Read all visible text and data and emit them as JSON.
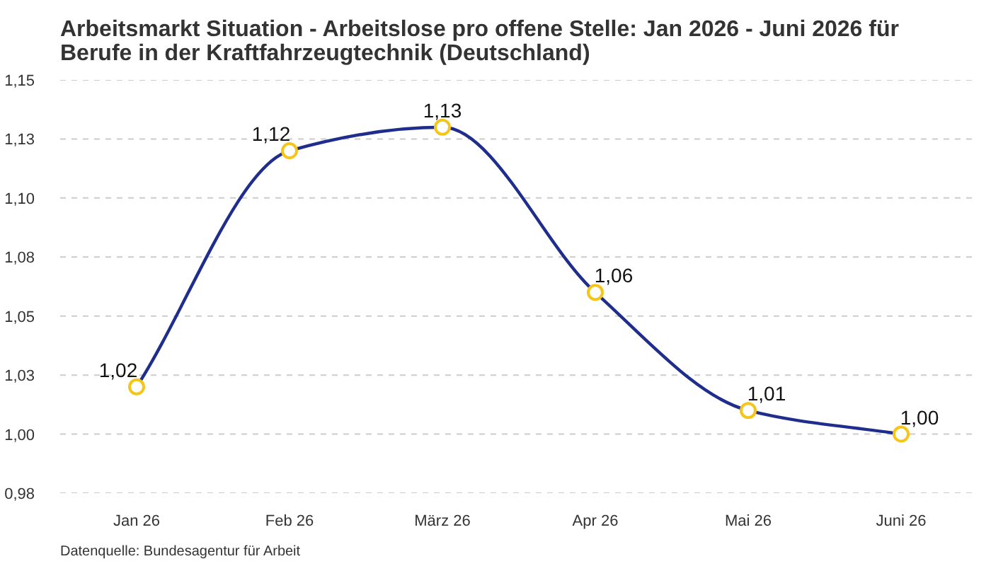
{
  "chart_data": {
    "type": "line",
    "title": "Arbeitsmarkt Situation - Arbeitslose pro offene Stelle: Jan 2026 - Juni 2026 für Berufe in der Kraftfahrzeugtechnik (Deutschland)",
    "annotations": [
      "Datenquelle: Bundesagentur für Arbeit"
    ],
    "categories": [
      "Jan 26",
      "Feb 26",
      "März 26",
      "Apr 26",
      "Mai 26",
      "Juni 26"
    ],
    "values": [
      1.02,
      1.12,
      1.13,
      1.06,
      1.01,
      1.0
    ],
    "value_labels": [
      "1,02",
      "1,12",
      "1,13",
      "1,06",
      "1,01",
      "1,00"
    ],
    "color": "#1f2d8c",
    "colors": [
      "#f5c518",
      "#f5c518",
      "#f5c518",
      "#f5c518",
      "#f5c518",
      "#f5c518"
    ],
    "ylim": [
      0.975,
      1.15
    ],
    "yticks": [
      {
        "value": 0.975,
        "label": "0,98"
      },
      {
        "value": 1.0,
        "label": "1,00"
      },
      {
        "value": 1.025,
        "label": "1,03"
      },
      {
        "value": 1.05,
        "label": "1,05"
      },
      {
        "value": 1.075,
        "label": "1,08"
      },
      {
        "value": 1.1,
        "label": "1,10"
      },
      {
        "value": 1.125,
        "label": "1,13"
      },
      {
        "value": 1.15,
        "label": "1,15"
      }
    ],
    "grid": "y",
    "marker": "circle",
    "line_style": "solid"
  }
}
